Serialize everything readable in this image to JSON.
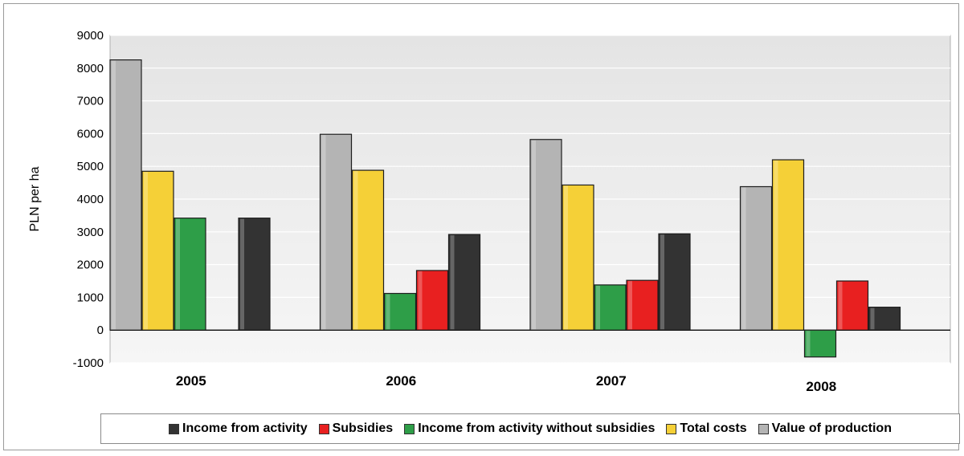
{
  "chart_data": {
    "type": "bar",
    "categories": [
      "2005",
      "2006",
      "2007",
      "2008"
    ],
    "series": [
      {
        "name": "Value of production",
        "color": "#b4b4b4",
        "values": [
          8250,
          5980,
          5820,
          4380
        ]
      },
      {
        "name": "Total costs",
        "color": "#f5d037",
        "values": [
          4850,
          4880,
          4430,
          5200
        ]
      },
      {
        "name": "Income from activity without subsidies",
        "color": "#2e9e48",
        "values": [
          3420,
          1120,
          1380,
          -820
        ]
      },
      {
        "name": "Subsidies",
        "color": "#e82020",
        "values": [
          null,
          1820,
          1520,
          1500
        ]
      },
      {
        "name": "Income from activity",
        "color": "#333333",
        "values": [
          3420,
          2920,
          2940,
          700
        ]
      }
    ],
    "legend_order": [
      "Income from activity",
      "Subsidies",
      "Income from activity without subsidies",
      "Total costs",
      "Value of production"
    ],
    "ylabel": "PLN per ha",
    "ylim": [
      -1000,
      9000
    ],
    "yticks": [
      "9000",
      "8000",
      "7000",
      "6000",
      "5000",
      "4000",
      "3000",
      "2000",
      "1000",
      "0",
      "-1000"
    ],
    "grid": true,
    "legend_position": "bottom"
  }
}
